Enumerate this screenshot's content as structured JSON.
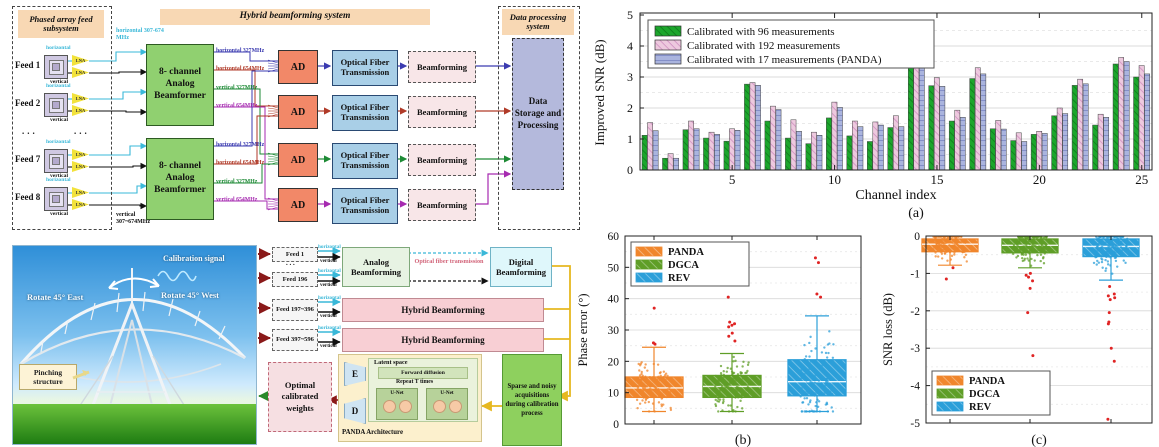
{
  "colors": {
    "series_green": "#1ca62c",
    "series_green_hatch": "#0e7a1a",
    "series_pink": "#edc9de",
    "series_pink_hatch": "#cf8fc0",
    "series_lav": "#aab4de",
    "series_lav_hatch": "#7b86c2",
    "panda_orange": "#f0862c",
    "dgca_green": "#5f9e27",
    "rev_blue": "#2b9fd9",
    "outlier_red": "#e02424",
    "wire_blue": "#3b3bb0",
    "wire_red": "#b03a28",
    "wire_green": "#1d8a35",
    "wire_magenta": "#a62ab0",
    "wire_cyan": "#3ab8d8",
    "wire_black": "#111111",
    "wire_yellow": "#e6b820",
    "wire_darkred": "#8a1a1a",
    "wire_dgreen": "#2a8a2a"
  },
  "top_diagram": {
    "subsystem_title": "Phased array feed subsystem",
    "hybrid_title": "Hybrid beamforming system",
    "data_title": "Data processing system",
    "feeds": [
      "Feed 1",
      "Feed 2",
      "Feed 7",
      "Feed 8"
    ],
    "feeds_ellipsis": "...",
    "lna_label": "LNA",
    "horizontal_label": "horizontal",
    "vertical_label": "vertical",
    "input_label_top": "horizontal 307-674 MHz",
    "input_label_bottom": "vertical 307~674MHz",
    "beamformer_label": "8- channel Analog Beamformer",
    "output_labels": [
      "horizontal 327MHz",
      "horizontal 654MHz",
      "vertical 327MHz",
      "vertical 654MHz"
    ],
    "ad_label": "AD",
    "fiber_label": "Optical Fiber Transmission",
    "beamforming_label": "Beamforming",
    "storage_label": "Data Storage and Processing"
  },
  "telescope": {
    "calibration_signal": "Calibration signal",
    "rotate_east": "Rotate 45° East",
    "rotate_west": "Rotate 45° West",
    "pinching": "Pinching structure"
  },
  "calibration_diagram": {
    "row1": {
      "feed_top": "Feed 1",
      "dots": ". . .",
      "feed_bottom": "Feed 196",
      "block": "Analog Beamforming",
      "fiber": "Optical fiber transmission",
      "block2": "Digital Beamforming"
    },
    "row2": {
      "feed": "Feed 197~396",
      "block": "Hybrid Beamforming"
    },
    "row3": {
      "feed": "Feed 397~596",
      "block": "Hybrid Beamforming"
    },
    "horizontal_label": "horizontal",
    "vertical_label": "vertical",
    "panda": {
      "e": "E",
      "d": "D",
      "latent": "Latent space",
      "forward": "Forward diffusion",
      "repeat": "Repeat T times",
      "unet": "U-Net",
      "caption": "PANDA Architecture"
    },
    "optimal_weights": "Optimal calibrated weights",
    "sparse_box": "Sparse and noisy acquisitions during calibration process"
  },
  "chart_data": [
    {
      "type": "bar",
      "title": "",
      "xlabel": "Channel index",
      "ylabel": "Improved SNR (dB)",
      "caption": "(a)",
      "ylim": [
        0,
        5
      ],
      "yticks": [
        0,
        1,
        2,
        3,
        4,
        5
      ],
      "xticks": [
        5,
        10,
        15,
        20,
        25
      ],
      "grid": true,
      "legend_position": "top-left",
      "categories": [
        1,
        2,
        3,
        4,
        5,
        6,
        7,
        8,
        9,
        10,
        11,
        12,
        13,
        14,
        15,
        16,
        17,
        18,
        19,
        20,
        21,
        22,
        23,
        24,
        25
      ],
      "series": [
        {
          "name": "Calibrated with 96 measurements",
          "color": "#1ca62c",
          "hatch_color": "#0e7a1a",
          "hatch": "diag",
          "values": [
            1.12,
            0.38,
            1.3,
            1.03,
            0.93,
            2.77,
            1.58,
            1.03,
            0.85,
            1.68,
            1.1,
            0.92,
            1.37,
            3.65,
            2.72,
            1.58,
            2.95,
            1.33,
            0.95,
            1.15,
            1.75,
            2.73,
            1.45,
            3.42,
            3.0
          ]
        },
        {
          "name": "Calibrated with 192 measurements",
          "color": "#edc9de",
          "hatch_color": "#cf8fc0",
          "hatch": "diag",
          "values": [
            1.53,
            0.53,
            1.58,
            1.22,
            1.33,
            2.82,
            2.06,
            1.62,
            1.22,
            2.19,
            1.58,
            1.55,
            1.75,
            3.85,
            2.98,
            1.93,
            3.3,
            1.6,
            1.2,
            1.25,
            2.0,
            2.93,
            1.8,
            3.63,
            3.37
          ]
        },
        {
          "name": "Calibrated with 17 measurements (PANDA)",
          "color": "#aab4de",
          "hatch_color": "#7b86c2",
          "hatch": "horiz",
          "values": [
            1.27,
            0.38,
            1.33,
            1.15,
            1.28,
            2.73,
            1.95,
            1.25,
            1.12,
            2.02,
            1.4,
            1.45,
            1.4,
            3.6,
            2.7,
            1.7,
            3.1,
            1.32,
            0.92,
            1.18,
            1.82,
            2.78,
            1.7,
            3.5,
            3.1
          ]
        }
      ]
    },
    {
      "type": "box",
      "ylabel": "Phase error (°)",
      "caption": "(b)",
      "ylim": [
        0,
        60
      ],
      "yticks": [
        0,
        10,
        20,
        30,
        40,
        50,
        60
      ],
      "legend_position": "top-left",
      "grid": true,
      "groups": [
        {
          "name": "PANDA",
          "color": "#f0862c",
          "median": 11.5,
          "q1": 8.5,
          "q3": 15,
          "lo": 4,
          "hi": 24.5,
          "outliers": [
            25.5,
            25.9,
            37
          ]
        },
        {
          "name": "DGCA",
          "color": "#5f9e27",
          "median": 12,
          "q1": 8.5,
          "q3": 15.5,
          "lo": 4,
          "hi": 22.5,
          "outliers": [
            26.5,
            28,
            29,
            31,
            31.5,
            32,
            32.5,
            40.5
          ]
        },
        {
          "name": "REV",
          "color": "#2b9fd9",
          "median": 13.5,
          "q1": 9,
          "q3": 20.5,
          "lo": 4,
          "hi": 34.5,
          "outliers": [
            40.5,
            41.5,
            51.5,
            53
          ]
        }
      ]
    },
    {
      "type": "box",
      "ylabel": "SNR loss (dB)",
      "caption": "(c)",
      "ylim": [
        -5,
        0
      ],
      "yticks": [
        0,
        -1,
        -2,
        -3,
        -4,
        -5
      ],
      "legend_position": "bottom-left",
      "grid": true,
      "groups": [
        {
          "name": "PANDA",
          "color": "#f0862c",
          "median": -0.22,
          "q1": -0.42,
          "q3": -0.08,
          "lo": -0.78,
          "hi": -0.02,
          "outliers": [
            -0.85,
            -1.15
          ]
        },
        {
          "name": "DGCA",
          "color": "#5f9e27",
          "median": -0.25,
          "q1": -0.45,
          "q3": -0.08,
          "lo": -0.85,
          "hi": -0.02,
          "outliers": [
            -1.0,
            -1.05,
            -1.1,
            -1.2,
            -1.4,
            -2.05,
            -3.2
          ]
        },
        {
          "name": "REV",
          "color": "#2b9fd9",
          "median": -0.28,
          "q1": -0.55,
          "q3": -0.08,
          "lo": -1.18,
          "hi": -0.02,
          "outliers": [
            -1.35,
            -1.55,
            -1.6,
            -1.65,
            -1.7,
            -2.05,
            -2.3,
            -2.35,
            -3.0,
            -3.35,
            -4.9
          ]
        }
      ]
    }
  ]
}
